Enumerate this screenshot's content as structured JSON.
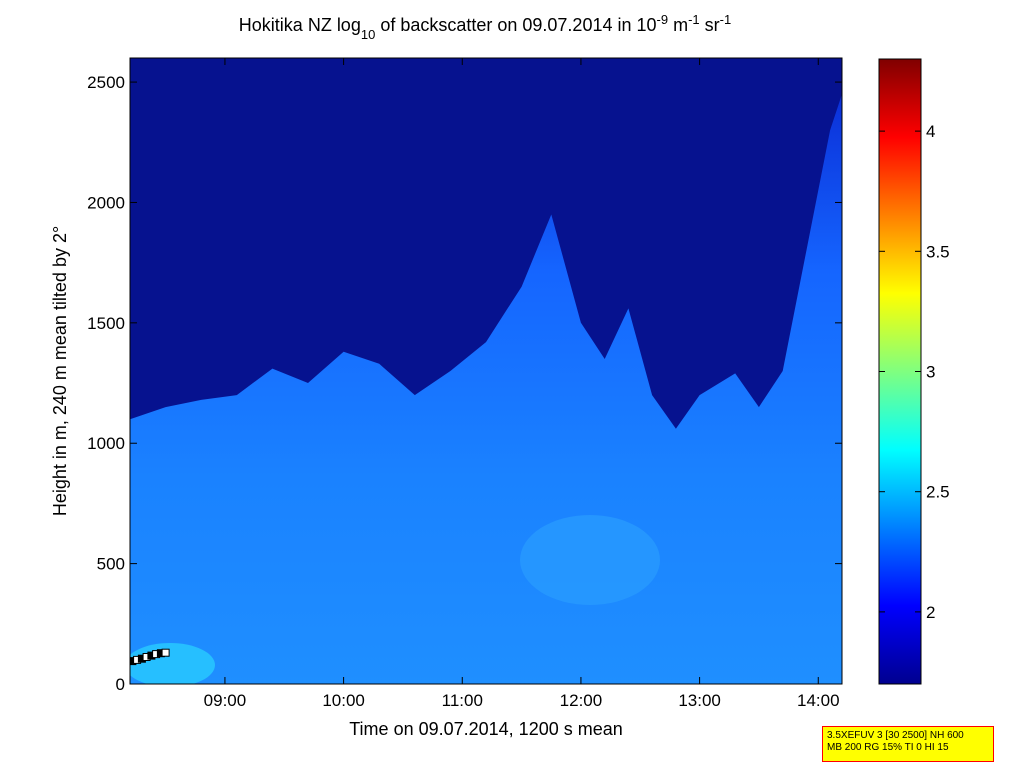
{
  "chart_data": {
    "type": "heatmap",
    "title": {
      "pre": "Hokitika NZ log",
      "sub": "10",
      "mid": " of backscatter on 09.07.2014 in 10",
      "sup1": "-9",
      "mid2": " m",
      "sup2": "-1",
      "mid3": " sr",
      "sup3": "-1"
    },
    "xlabel": "Time on 09.07.2014, 1200 s mean",
    "ylabel": "Height in m, 240 m mean tilted by 2°",
    "x_range_hours": [
      8.2,
      14.2
    ],
    "ylim": [
      0,
      2600
    ],
    "x_ticks": [
      {
        "value": 9,
        "label": "09:00"
      },
      {
        "value": 10,
        "label": "10:00"
      },
      {
        "value": 11,
        "label": "11:00"
      },
      {
        "value": 12,
        "label": "12:00"
      },
      {
        "value": 13,
        "label": "13:00"
      },
      {
        "value": 14,
        "label": "14:00"
      }
    ],
    "y_ticks": [
      {
        "value": 0,
        "label": "0"
      },
      {
        "value": 500,
        "label": "500"
      },
      {
        "value": 1000,
        "label": "1000"
      },
      {
        "value": 1500,
        "label": "1500"
      },
      {
        "value": 2000,
        "label": "2000"
      },
      {
        "value": 2500,
        "label": "2500"
      }
    ],
    "colorbar": {
      "range": [
        1.7,
        4.3
      ],
      "ticks": [
        {
          "value": 2,
          "label": "2"
        },
        {
          "value": 2.5,
          "label": "2.5"
        },
        {
          "value": 3,
          "label": "3"
        },
        {
          "value": 3.5,
          "label": "3.5"
        },
        {
          "value": 4,
          "label": "4"
        }
      ],
      "colormap": "jet"
    },
    "boundary_layer_top_m": [
      {
        "t": 8.2,
        "h": 1100
      },
      {
        "t": 8.5,
        "h": 1150
      },
      {
        "t": 8.8,
        "h": 1180
      },
      {
        "t": 9.1,
        "h": 1200
      },
      {
        "t": 9.4,
        "h": 1310
      },
      {
        "t": 9.7,
        "h": 1250
      },
      {
        "t": 10.0,
        "h": 1380
      },
      {
        "t": 10.3,
        "h": 1330
      },
      {
        "t": 10.6,
        "h": 1200
      },
      {
        "t": 10.9,
        "h": 1300
      },
      {
        "t": 11.2,
        "h": 1420
      },
      {
        "t": 11.5,
        "h": 1650
      },
      {
        "t": 11.75,
        "h": 1950
      },
      {
        "t": 12.0,
        "h": 1500
      },
      {
        "t": 12.2,
        "h": 1350
      },
      {
        "t": 12.4,
        "h": 1560
      },
      {
        "t": 12.6,
        "h": 1200
      },
      {
        "t": 12.8,
        "h": 1060
      },
      {
        "t": 13.0,
        "h": 1200
      },
      {
        "t": 13.3,
        "h": 1290
      },
      {
        "t": 13.5,
        "h": 1150
      },
      {
        "t": 13.7,
        "h": 1300
      },
      {
        "t": 13.9,
        "h": 1800
      },
      {
        "t": 14.1,
        "h": 2300
      },
      {
        "t": 14.2,
        "h": 2450
      }
    ],
    "cloud_base_markers": [
      {
        "t": 8.22,
        "h": 95
      },
      {
        "t": 8.26,
        "h": 100
      },
      {
        "t": 8.3,
        "h": 105
      },
      {
        "t": 8.34,
        "h": 112
      },
      {
        "t": 8.38,
        "h": 118
      },
      {
        "t": 8.42,
        "h": 124
      },
      {
        "t": 8.46,
        "h": 128
      },
      {
        "t": 8.5,
        "h": 130
      }
    ],
    "grid": false,
    "legend": "colorbar-right"
  },
  "info_box": {
    "line1": "3.5XEFUV 3 [30 2500] NH 600",
    "line2": "MB 200 RG 15% TI 0 HI 15"
  }
}
